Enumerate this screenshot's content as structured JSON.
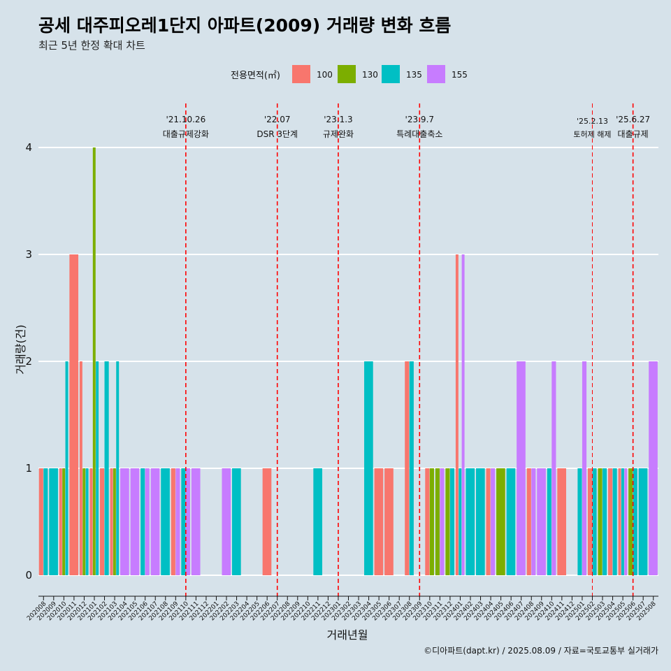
{
  "title": "공세 대주피오레1단지 아파트(2009) 거래량 변화 흐름",
  "subtitle": "최근 5년 한정 확대 차트",
  "caption": "©디아파트(dapt.kr) / 2025.08.09 / 자료=국토교통부 실거래가",
  "chart_data": {
    "type": "bar",
    "xlabel": "거래년월",
    "ylabel": "거래량(건)",
    "ylim": [
      0,
      4
    ],
    "yticks": [
      0,
      1,
      2,
      3,
      4
    ],
    "grid": true,
    "legend": {
      "title": "전용면적(㎡)",
      "position": "top"
    },
    "categories": [
      "202008",
      "202009",
      "202010",
      "202011",
      "202012",
      "202101",
      "202102",
      "202103",
      "202104",
      "202105",
      "202106",
      "202107",
      "202108",
      "202109",
      "202110",
      "202111",
      "202112",
      "202201",
      "202202",
      "202203",
      "202204",
      "202205",
      "202206",
      "202207",
      "202208",
      "202209",
      "202210",
      "202211",
      "202212",
      "202301",
      "202302",
      "202303",
      "202304",
      "202305",
      "202306",
      "202307",
      "202308",
      "202309",
      "202310",
      "202311",
      "202312",
      "202401",
      "202402",
      "202403",
      "202404",
      "202405",
      "202406",
      "202407",
      "202408",
      "202409",
      "202410",
      "202411",
      "202412",
      "202501",
      "202502",
      "202503",
      "202504",
      "202505",
      "202506",
      "202507",
      "202508"
    ],
    "series": [
      {
        "name": "100",
        "color": "#f8766d"
      },
      {
        "name": "130",
        "color": "#7cae00"
      },
      {
        "name": "135",
        "color": "#00bfc4"
      },
      {
        "name": "155",
        "color": "#c77cff"
      }
    ],
    "bars": [
      {
        "month": "202008",
        "items": [
          {
            "s": "100",
            "v": 1
          },
          {
            "s": "135",
            "v": 1
          }
        ]
      },
      {
        "month": "202009",
        "items": [
          {
            "s": "135",
            "v": 1
          }
        ]
      },
      {
        "month": "202010",
        "items": [
          {
            "s": "100",
            "v": 1
          },
          {
            "s": "130",
            "v": 1
          },
          {
            "s": "135",
            "v": 2
          }
        ]
      },
      {
        "month": "202011",
        "items": [
          {
            "s": "100",
            "v": 3
          }
        ]
      },
      {
        "month": "202012",
        "items": [
          {
            "s": "100",
            "v": 2
          },
          {
            "s": "130",
            "v": 1
          },
          {
            "s": "135",
            "v": 1
          }
        ]
      },
      {
        "month": "202101",
        "items": [
          {
            "s": "100",
            "v": 1
          },
          {
            "s": "130",
            "v": 4
          },
          {
            "s": "135",
            "v": 2
          }
        ]
      },
      {
        "month": "202102",
        "items": [
          {
            "s": "100",
            "v": 1
          },
          {
            "s": "135",
            "v": 2
          }
        ]
      },
      {
        "month": "202103",
        "items": [
          {
            "s": "100",
            "v": 1
          },
          {
            "s": "130",
            "v": 1
          },
          {
            "s": "135",
            "v": 2
          }
        ]
      },
      {
        "month": "202104",
        "items": [
          {
            "s": "155",
            "v": 1
          }
        ]
      },
      {
        "month": "202105",
        "items": [
          {
            "s": "155",
            "v": 1
          }
        ]
      },
      {
        "month": "202106",
        "items": [
          {
            "s": "135",
            "v": 1
          },
          {
            "s": "155",
            "v": 1
          }
        ]
      },
      {
        "month": "202107",
        "items": [
          {
            "s": "155",
            "v": 1
          }
        ]
      },
      {
        "month": "202108",
        "items": [
          {
            "s": "135",
            "v": 1
          }
        ]
      },
      {
        "month": "202109",
        "items": [
          {
            "s": "100",
            "v": 1
          },
          {
            "s": "155",
            "v": 1
          }
        ]
      },
      {
        "month": "202110",
        "items": [
          {
            "s": "135",
            "v": 1
          },
          {
            "s": "155",
            "v": 1
          }
        ]
      },
      {
        "month": "202111",
        "items": [
          {
            "s": "155",
            "v": 1
          }
        ]
      },
      {
        "month": "202112",
        "items": []
      },
      {
        "month": "202201",
        "items": []
      },
      {
        "month": "202202",
        "items": [
          {
            "s": "155",
            "v": 1
          }
        ]
      },
      {
        "month": "202203",
        "items": [
          {
            "s": "135",
            "v": 1
          }
        ]
      },
      {
        "month": "202204",
        "items": []
      },
      {
        "month": "202205",
        "items": []
      },
      {
        "month": "202206",
        "items": [
          {
            "s": "100",
            "v": 1
          }
        ]
      },
      {
        "month": "202207",
        "items": []
      },
      {
        "month": "202208",
        "items": []
      },
      {
        "month": "202209",
        "items": []
      },
      {
        "month": "202210",
        "items": []
      },
      {
        "month": "202211",
        "items": [
          {
            "s": "135",
            "v": 1
          }
        ]
      },
      {
        "month": "202212",
        "items": []
      },
      {
        "month": "202301",
        "items": []
      },
      {
        "month": "202302",
        "items": []
      },
      {
        "month": "202303",
        "items": []
      },
      {
        "month": "202304",
        "items": [
          {
            "s": "135",
            "v": 2
          }
        ]
      },
      {
        "month": "202305",
        "items": [
          {
            "s": "100",
            "v": 1
          }
        ]
      },
      {
        "month": "202306",
        "items": [
          {
            "s": "100",
            "v": 1
          }
        ]
      },
      {
        "month": "202307",
        "items": []
      },
      {
        "month": "202308",
        "items": [
          {
            "s": "100",
            "v": 2
          },
          {
            "s": "135",
            "v": 2
          }
        ]
      },
      {
        "month": "202309",
        "items": []
      },
      {
        "month": "202310",
        "items": [
          {
            "s": "100",
            "v": 1
          },
          {
            "s": "130",
            "v": 1
          }
        ]
      },
      {
        "month": "202311",
        "items": [
          {
            "s": "130",
            "v": 1
          },
          {
            "s": "155",
            "v": 1
          }
        ]
      },
      {
        "month": "202312",
        "items": [
          {
            "s": "130",
            "v": 1
          },
          {
            "s": "135",
            "v": 1
          }
        ]
      },
      {
        "month": "202401",
        "items": [
          {
            "s": "100",
            "v": 3
          },
          {
            "s": "135",
            "v": 1
          },
          {
            "s": "155",
            "v": 3
          }
        ]
      },
      {
        "month": "202402",
        "items": [
          {
            "s": "135",
            "v": 1
          }
        ]
      },
      {
        "month": "202403",
        "items": [
          {
            "s": "135",
            "v": 1
          }
        ]
      },
      {
        "month": "202404",
        "items": [
          {
            "s": "100",
            "v": 1
          },
          {
            "s": "155",
            "v": 1
          }
        ]
      },
      {
        "month": "202405",
        "items": [
          {
            "s": "130",
            "v": 1
          }
        ]
      },
      {
        "month": "202406",
        "items": [
          {
            "s": "135",
            "v": 1
          }
        ]
      },
      {
        "month": "202407",
        "items": [
          {
            "s": "155",
            "v": 2
          }
        ]
      },
      {
        "month": "202408",
        "items": [
          {
            "s": "100",
            "v": 1
          },
          {
            "s": "155",
            "v": 1
          }
        ]
      },
      {
        "month": "202409",
        "items": [
          {
            "s": "155",
            "v": 1
          }
        ]
      },
      {
        "month": "202410",
        "items": [
          {
            "s": "135",
            "v": 1
          },
          {
            "s": "155",
            "v": 2
          }
        ]
      },
      {
        "month": "202411",
        "items": [
          {
            "s": "100",
            "v": 1
          }
        ]
      },
      {
        "month": "202412",
        "items": []
      },
      {
        "month": "202501",
        "items": [
          {
            "s": "135",
            "v": 1
          },
          {
            "s": "155",
            "v": 2
          }
        ]
      },
      {
        "month": "202502",
        "items": [
          {
            "s": "100",
            "v": 1
          },
          {
            "s": "135",
            "v": 1
          }
        ]
      },
      {
        "month": "202503",
        "items": [
          {
            "s": "130",
            "v": 1
          },
          {
            "s": "135",
            "v": 1
          }
        ]
      },
      {
        "month": "202504",
        "items": [
          {
            "s": "100",
            "v": 1
          },
          {
            "s": "135",
            "v": 1
          }
        ]
      },
      {
        "month": "202505",
        "items": [
          {
            "s": "100",
            "v": 1
          },
          {
            "s": "135",
            "v": 1
          },
          {
            "s": "155",
            "v": 1
          }
        ]
      },
      {
        "month": "202506",
        "items": [
          {
            "s": "130",
            "v": 1
          },
          {
            "s": "135",
            "v": 1
          }
        ]
      },
      {
        "month": "202507",
        "items": [
          {
            "s": "135",
            "v": 1
          }
        ]
      },
      {
        "month": "202508",
        "items": [
          {
            "s": "155",
            "v": 2
          }
        ]
      }
    ],
    "events": [
      {
        "month": "202110",
        "date": "'21.10.26",
        "label": "대출규제강화"
      },
      {
        "month": "202207",
        "date": "'22.07",
        "label": "DSR 3단계"
      },
      {
        "month": "202301",
        "date": "'23.1.3",
        "label": "규제완화"
      },
      {
        "month": "202309",
        "date": "'23.9.7",
        "label": "특례대출축소"
      },
      {
        "month": "202502",
        "date": "'25.2.13",
        "label": "토허제 해제"
      },
      {
        "month": "202506",
        "date": "'25.6.27",
        "label": "대출규제"
      }
    ]
  }
}
